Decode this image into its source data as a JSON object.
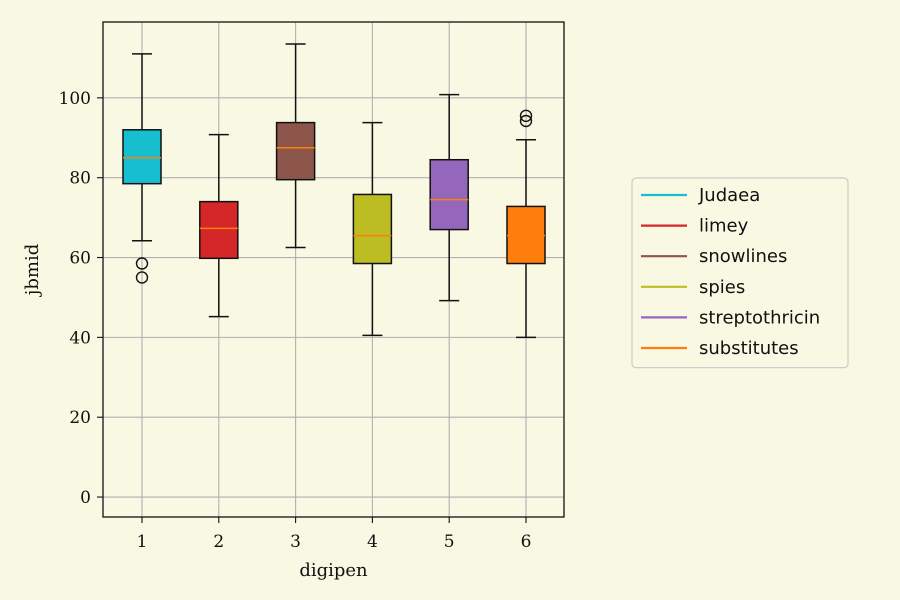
{
  "chart_data": {
    "type": "box",
    "xlabel": "digipen",
    "ylabel": "jbmid",
    "ylim": [
      -5,
      119
    ],
    "yticks": [
      0,
      20,
      40,
      60,
      80,
      100
    ],
    "categories": [
      "1",
      "2",
      "3",
      "4",
      "5",
      "6"
    ],
    "grid": true,
    "legend_position": "right",
    "median_color": "#ff7f0e",
    "background_color": "#f9f8e2",
    "series": [
      {
        "name": "Judaea",
        "color": "#17becf",
        "whisker_low": 64.2,
        "q1": 78.5,
        "median": 85.0,
        "q3": 92.0,
        "whisker_high": 111.0,
        "outliers": [
          58.5,
          55.0
        ]
      },
      {
        "name": "limey",
        "color": "#d62728",
        "whisker_low": 45.2,
        "q1": 59.8,
        "median": 67.3,
        "q3": 74.0,
        "whisker_high": 90.8,
        "outliers": []
      },
      {
        "name": "snowlines",
        "color": "#8c564b",
        "whisker_low": 62.5,
        "q1": 79.5,
        "median": 87.5,
        "q3": 93.8,
        "whisker_high": 113.5,
        "outliers": []
      },
      {
        "name": "spies",
        "color": "#bcbd22",
        "whisker_low": 40.5,
        "q1": 58.5,
        "median": 65.5,
        "q3": 75.8,
        "whisker_high": 93.8,
        "outliers": []
      },
      {
        "name": "streptothricin",
        "color": "#9467bd",
        "whisker_low": 49.2,
        "q1": 67.0,
        "median": 74.5,
        "q3": 84.5,
        "whisker_high": 100.8,
        "outliers": []
      },
      {
        "name": "substitutes",
        "color": "#ff7f0e",
        "whisker_low": 40.0,
        "q1": 58.5,
        "median": 65.5,
        "q3": 72.8,
        "whisker_high": 89.5,
        "outliers": [
          94.2,
          95.5
        ]
      }
    ]
  }
}
